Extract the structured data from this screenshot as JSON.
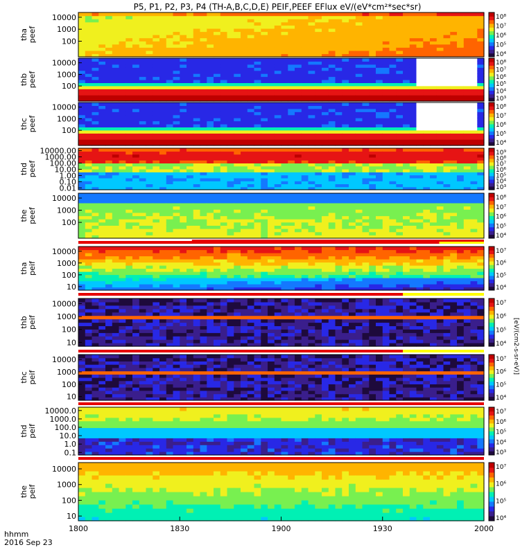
{
  "title": "P5, P1, P2, P3, P4 (TH-A,B,C,D,E) PEIF,PEEF EFlux eV/(eV*cm²*sec*sr)",
  "colorbar_unit_label": "[eV/(cm2-s-sr-eV)]",
  "time_axis": {
    "xlabel_line1": "hhmm",
    "xlabel_line2": "2016 Sep 23",
    "ticks": [
      "1800",
      "1830",
      "1900",
      "1930",
      "2000"
    ],
    "tick_hours": [
      18.0,
      18.5,
      19.0,
      19.5,
      20.0
    ],
    "range_hours": [
      18.0,
      20.0
    ]
  },
  "colorscale": [
    "#1e0a3c",
    "#3a1e8c",
    "#2828e6",
    "#1478ff",
    "#00c8ff",
    "#00f0b4",
    "#78f050",
    "#f0f01e",
    "#ffb400",
    "#ff6400",
    "#e61414",
    "#be0000"
  ],
  "chart_data": [
    {
      "type": "heatmap",
      "ylabel": "tha peef",
      "yticks": [
        "10000",
        "1000",
        "100"
      ],
      "yrange": [
        5,
        25000
      ],
      "cb_ticks": [
        "10⁸",
        "10⁷",
        "10⁶",
        "10⁵",
        "10⁴"
      ],
      "profile": "tha_e",
      "mask": [
        [
          19.17,
          19.67
        ],
        [
          18.56,
          18.6
        ]
      ]
    },
    {
      "type": "heatmap",
      "ylabel": "thb peef",
      "yticks": [
        "10000",
        "1000",
        "100"
      ],
      "yrange": [
        5,
        25000
      ],
      "cb_ticks": [
        "10⁸",
        "10⁷",
        "10⁶",
        "10⁵",
        "10⁴",
        "10³"
      ],
      "profile": "inner_e",
      "gap": [
        19.68,
        19.98
      ]
    },
    {
      "type": "heatmap",
      "ylabel": "thc peef",
      "yticks": [
        "10000",
        "1000",
        "100"
      ],
      "yrange": [
        5,
        25000
      ],
      "cb_ticks": [
        "10⁸",
        "10⁷",
        "10⁶",
        "10⁵",
        "10⁴"
      ],
      "profile": "inner_e",
      "gap": [
        19.68,
        19.98
      ]
    },
    {
      "type": "heatmap",
      "ylabel": "thd peef",
      "yticks": [
        "10000.00",
        "1000.00",
        "100.00",
        "10.00",
        "1.00",
        "0.10",
        "0.01"
      ],
      "yrange": [
        0.005,
        25000
      ],
      "cb_ticks": [
        "10⁹",
        "10⁸",
        "10⁷",
        "10⁶",
        "10⁵",
        "10⁴",
        "10³"
      ],
      "profile": "thd_e"
    },
    {
      "type": "heatmap",
      "ylabel": "the peef",
      "yticks": [
        "10000",
        "1000",
        "100"
      ],
      "yrange": [
        5,
        25000
      ],
      "cb_ticks": [
        "10⁸",
        "10⁷",
        "10⁶",
        "10⁵",
        "10⁴"
      ],
      "profile": "the_e"
    },
    {
      "type": "heatmap",
      "ylabel": "tha peif",
      "yticks": [
        "10000",
        "1000",
        "100",
        "10"
      ],
      "yrange": [
        5,
        25000
      ],
      "cb_ticks": [
        "10⁷",
        "10⁶",
        "10⁵",
        "10⁴"
      ],
      "profile": "tha_i"
    },
    {
      "type": "heatmap",
      "ylabel": "thb peif",
      "yticks": [
        "10000",
        "1000",
        "100",
        "10"
      ],
      "yrange": [
        5,
        25000
      ],
      "cb_ticks": [
        "10⁷",
        "10⁶",
        "10⁵",
        "10⁴"
      ],
      "profile": "inner_i"
    },
    {
      "type": "heatmap",
      "ylabel": "thc peif",
      "yticks": [
        "10000",
        "1000",
        "100",
        "10"
      ],
      "yrange": [
        5,
        25000
      ],
      "cb_ticks": [
        "10⁷",
        "10⁶",
        "10⁵",
        "10⁴"
      ],
      "profile": "inner_i"
    },
    {
      "type": "heatmap",
      "ylabel": "thd peif",
      "yticks": [
        "10000.0",
        "1000.0",
        "100.0",
        "10.0",
        "1.0",
        "0.1"
      ],
      "yrange": [
        0.05,
        25000
      ],
      "cb_ticks": [
        "10⁷",
        "10⁶",
        "10⁵",
        "10⁴",
        "10³"
      ],
      "profile": "thd_i"
    },
    {
      "type": "heatmap",
      "ylabel": "the peif",
      "yticks": [
        "10000",
        "1000",
        "100",
        "10"
      ],
      "yrange": [
        5,
        25000
      ],
      "cb_ticks": [
        "10⁷",
        "10⁶",
        "10⁵",
        "10⁴"
      ],
      "profile": "the_i"
    }
  ]
}
